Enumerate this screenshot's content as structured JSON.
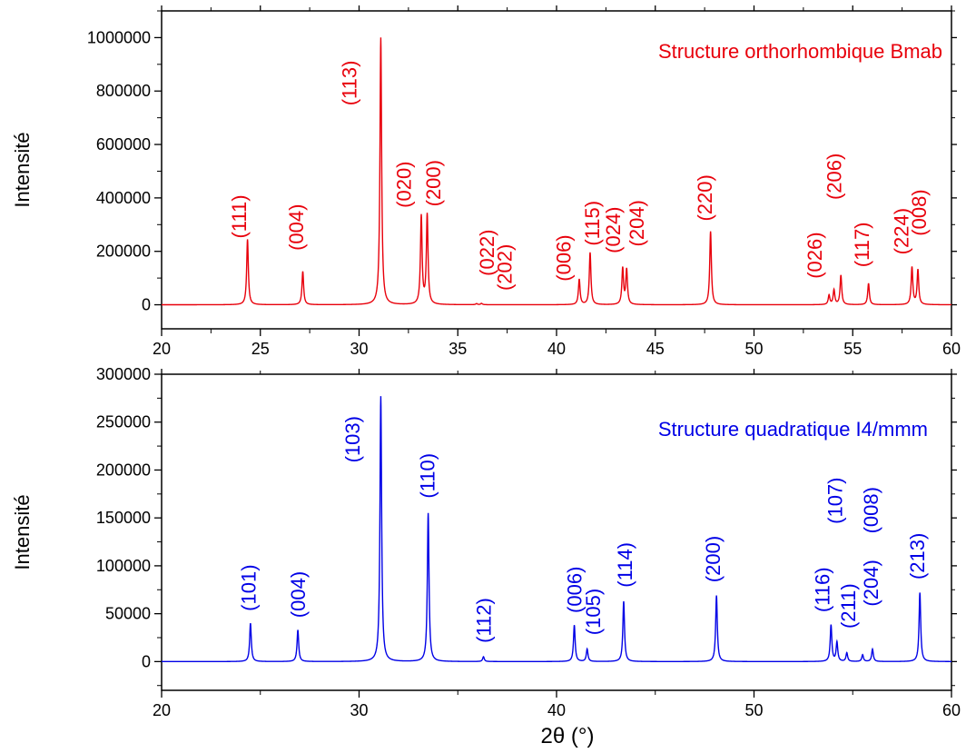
{
  "chart_data": [
    {
      "type": "line",
      "title": "Structure orthorhombique Bmab",
      "ylabel": "Intensité",
      "xlabel": "",
      "color": "#e8000b",
      "xlim": [
        20,
        60
      ],
      "ylim": [
        -90000,
        1100000
      ],
      "xticks": [
        "20",
        "25",
        "30",
        "35",
        "40",
        "45",
        "50",
        "55",
        "60"
      ],
      "yticks": [
        "0",
        "200000",
        "400000",
        "600000",
        "800000",
        "1000000"
      ],
      "xtick_values": [
        20,
        25,
        30,
        35,
        40,
        45,
        50,
        55,
        60
      ],
      "ytick_values": [
        0,
        200000,
        400000,
        600000,
        800000,
        1000000
      ],
      "peaks": [
        {
          "x": 24.35,
          "y": 245000
        },
        {
          "x": 27.15,
          "y": 125000
        },
        {
          "x": 31.1,
          "y": 1000000
        },
        {
          "x": 33.15,
          "y": 330000
        },
        {
          "x": 33.45,
          "y": 335000
        },
        {
          "x": 35.95,
          "y": 4000
        },
        {
          "x": 36.2,
          "y": 5000
        },
        {
          "x": 41.15,
          "y": 95000
        },
        {
          "x": 41.7,
          "y": 195000
        },
        {
          "x": 43.35,
          "y": 135000
        },
        {
          "x": 43.55,
          "y": 130000
        },
        {
          "x": 47.8,
          "y": 275000
        },
        {
          "x": 53.8,
          "y": 35000
        },
        {
          "x": 54.05,
          "y": 55000
        },
        {
          "x": 54.4,
          "y": 110000
        },
        {
          "x": 55.8,
          "y": 80000
        },
        {
          "x": 58.0,
          "y": 140000
        },
        {
          "x": 58.3,
          "y": 130000
        }
      ],
      "annotations": [
        {
          "text": "(111)",
          "x": 24.0,
          "y": 330000
        },
        {
          "text": "(004)",
          "x": 26.9,
          "y": 290000
        },
        {
          "text": "(113)",
          "x": 29.6,
          "y": 830000
        },
        {
          "text": "(020)",
          "x": 32.35,
          "y": 450000
        },
        {
          "text": "(200)",
          "x": 33.85,
          "y": 455000
        },
        {
          "text": "(022)",
          "x": 36.55,
          "y": 195000
        },
        {
          "text": "(202)",
          "x": 37.45,
          "y": 140000
        },
        {
          "text": "(006)",
          "x": 40.45,
          "y": 175000
        },
        {
          "text": "(115)",
          "x": 41.9,
          "y": 305000
        },
        {
          "text": "(024)",
          "x": 42.95,
          "y": 280000
        },
        {
          "text": "(204)",
          "x": 44.15,
          "y": 305000
        },
        {
          "text": "(220)",
          "x": 47.6,
          "y": 400000
        },
        {
          "text": "(026)",
          "x": 53.15,
          "y": 185000
        },
        {
          "text": "(206)",
          "x": 54.15,
          "y": 480000
        },
        {
          "text": "(117)",
          "x": 55.55,
          "y": 225000
        },
        {
          "text": "(224)",
          "x": 57.55,
          "y": 275000
        },
        {
          "text": "(008)",
          "x": 58.45,
          "y": 345000
        }
      ]
    },
    {
      "type": "line",
      "title": "Structure quadratique I4/mmm",
      "ylabel": "Intensité",
      "xlabel": "2θ (°)",
      "color": "#0000e6",
      "xlim": [
        20,
        60
      ],
      "ylim": [
        -30000,
        300000
      ],
      "xticks": [
        "20",
        "30",
        "40",
        "50",
        "60"
      ],
      "yticks": [
        "0",
        "50000",
        "100000",
        "150000",
        "200000",
        "250000",
        "300000"
      ],
      "xtick_values": [
        20,
        30,
        40,
        50,
        60
      ],
      "ytick_values": [
        0,
        50000,
        100000,
        150000,
        200000,
        250000,
        300000
      ],
      "peaks": [
        {
          "x": 24.5,
          "y": 40000
        },
        {
          "x": 26.9,
          "y": 33000
        },
        {
          "x": 31.1,
          "y": 277000
        },
        {
          "x": 33.5,
          "y": 155000
        },
        {
          "x": 36.3,
          "y": 5000
        },
        {
          "x": 40.9,
          "y": 38000
        },
        {
          "x": 41.55,
          "y": 13000
        },
        {
          "x": 43.4,
          "y": 63000
        },
        {
          "x": 48.1,
          "y": 69000
        },
        {
          "x": 53.9,
          "y": 38000
        },
        {
          "x": 54.2,
          "y": 20000
        },
        {
          "x": 54.7,
          "y": 9000
        },
        {
          "x": 55.5,
          "y": 7000
        },
        {
          "x": 56.0,
          "y": 13000
        },
        {
          "x": 58.4,
          "y": 72000
        }
      ],
      "annotations": [
        {
          "text": "(101)",
          "x": 24.5,
          "y": 77000
        },
        {
          "text": "(004)",
          "x": 27.0,
          "y": 70000
        },
        {
          "text": "(103)",
          "x": 29.75,
          "y": 232000
        },
        {
          "text": "(110)",
          "x": 33.55,
          "y": 194000
        },
        {
          "text": "(112)",
          "x": 36.4,
          "y": 43000
        },
        {
          "text": "(006)",
          "x": 41.0,
          "y": 75000
        },
        {
          "text": "(105)",
          "x": 41.95,
          "y": 52000
        },
        {
          "text": "(114)",
          "x": 43.55,
          "y": 101000
        },
        {
          "text": "(200)",
          "x": 48.0,
          "y": 107000
        },
        {
          "text": "(116)",
          "x": 53.55,
          "y": 75000
        },
        {
          "text": "(107)",
          "x": 54.2,
          "y": 168000
        },
        {
          "text": "(211)",
          "x": 54.85,
          "y": 58000
        },
        {
          "text": "(008)",
          "x": 56.0,
          "y": 158000
        },
        {
          "text": "(204)",
          "x": 56.0,
          "y": 82000
        },
        {
          "text": "(213)",
          "x": 58.35,
          "y": 110000
        }
      ]
    }
  ]
}
